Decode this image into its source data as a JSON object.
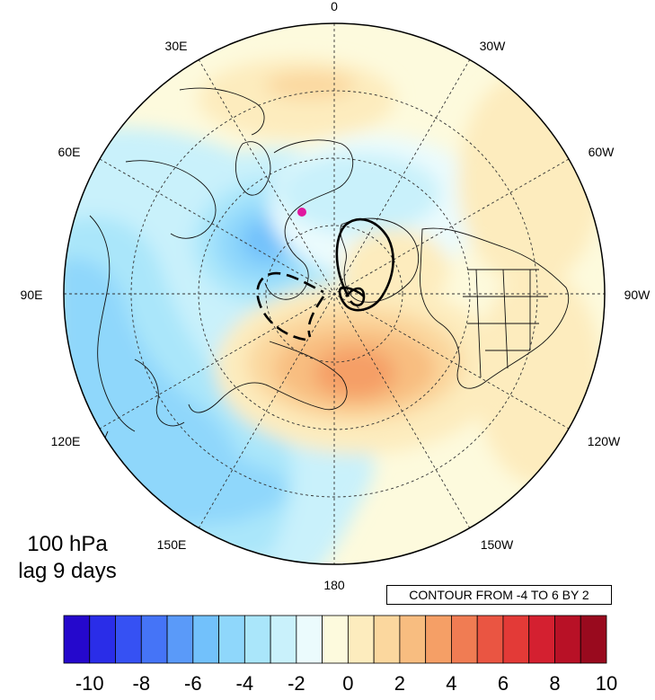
{
  "map": {
    "projection": "north polar stereographic",
    "longitude_labels": [
      "0",
      "30W",
      "60W",
      "90W",
      "120W",
      "150W",
      "180",
      "150E",
      "120E",
      "90E",
      "60E",
      "30E"
    ],
    "marker_color": "#e0189f",
    "contour_style": "black lines; dashed = negative"
  },
  "panel": {
    "level": "100 hPa",
    "lag": "lag 9 days"
  },
  "contour_note": "CONTOUR FROM -4 TO 6 BY 2",
  "colorbar": {
    "tick_labels": [
      "-10",
      "-8",
      "-6",
      "-4",
      "-2",
      "0",
      "2",
      "4",
      "6",
      "8",
      "10"
    ],
    "colors": [
      "#2508cc",
      "#2a2de8",
      "#3651f3",
      "#4574f7",
      "#5a9af9",
      "#72c1fb",
      "#8fd7fb",
      "#aae6fa",
      "#c9f1fb",
      "#ebfbfd",
      "#fdfadd",
      "#fdecbe",
      "#fbd79e",
      "#f8bd80",
      "#f59f66",
      "#f07c53",
      "#ea5542",
      "#e33a37",
      "#d42030",
      "#b81126",
      "#990a1e"
    ]
  }
}
